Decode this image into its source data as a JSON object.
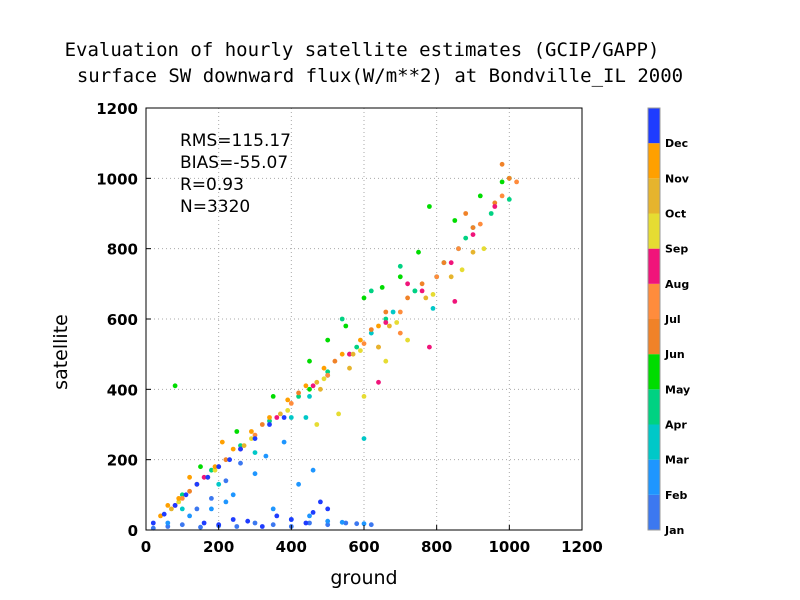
{
  "chart_data": {
    "type": "scatter",
    "title": "Evaluation of hourly satellite estimates (GCIP/GAPP)",
    "subtitle": "surface SW downward flux(W/m**2) at Bondville_IL 2000",
    "xlabel": "ground",
    "ylabel": "satellite",
    "xlim": [
      0,
      1200
    ],
    "ylim": [
      0,
      1200
    ],
    "xticks": [
      "0",
      "200",
      "400",
      "600",
      "800",
      "1000",
      "1200"
    ],
    "yticks": [
      "0",
      "200",
      "400",
      "600",
      "800",
      "1000",
      "1200"
    ],
    "grid": true,
    "stats": [
      "RMS=115.17",
      "BIAS=-55.07",
      "R=0.93",
      "N=3320"
    ],
    "legend_position": "right colorbar",
    "colorbar": [
      {
        "label": "Jan",
        "color": "#3c78f0"
      },
      {
        "label": "Feb",
        "color": "#1e96ff"
      },
      {
        "label": "Mar",
        "color": "#00c8c8"
      },
      {
        "label": "Apr",
        "color": "#00d282"
      },
      {
        "label": "May",
        "color": "#00dc00"
      },
      {
        "label": "Jun",
        "color": "#f08228"
      },
      {
        "label": "Jul",
        "color": "#ff8c3c"
      },
      {
        "label": "Aug",
        "color": "#f0147a"
      },
      {
        "label": "Sep",
        "color": "#e6dc32"
      },
      {
        "label": "Oct",
        "color": "#e6b42d"
      },
      {
        "label": "Nov",
        "color": "#ffa000"
      },
      {
        "label": "Dec",
        "color": "#1e3cff"
      }
    ],
    "series": [
      {
        "month": "Jan",
        "points": [
          [
            20,
            5
          ],
          [
            60,
            10
          ],
          [
            100,
            15
          ],
          [
            150,
            8
          ],
          [
            200,
            12
          ],
          [
            250,
            10
          ],
          [
            300,
            20
          ],
          [
            350,
            15
          ],
          [
            400,
            10
          ],
          [
            450,
            20
          ],
          [
            500,
            15
          ],
          [
            550,
            20
          ],
          [
            580,
            18
          ],
          [
            620,
            15
          ],
          [
            220,
            140
          ],
          [
            260,
            190
          ],
          [
            180,
            90
          ],
          [
            140,
            60
          ]
        ]
      },
      {
        "month": "Feb",
        "points": [
          [
            60,
            20
          ],
          [
            120,
            40
          ],
          [
            180,
            60
          ],
          [
            240,
            100
          ],
          [
            300,
            160
          ],
          [
            330,
            210
          ],
          [
            380,
            250
          ],
          [
            400,
            30
          ],
          [
            450,
            40
          ],
          [
            500,
            25
          ],
          [
            540,
            22
          ],
          [
            600,
            18
          ],
          [
            350,
            60
          ],
          [
            420,
            130
          ],
          [
            460,
            170
          ],
          [
            220,
            80
          ]
        ]
      },
      {
        "month": "Mar",
        "points": [
          [
            100,
            60
          ],
          [
            200,
            130
          ],
          [
            300,
            220
          ],
          [
            400,
            320
          ],
          [
            450,
            380
          ],
          [
            500,
            440
          ],
          [
            560,
            500
          ],
          [
            620,
            560
          ],
          [
            680,
            620
          ],
          [
            740,
            680
          ],
          [
            790,
            630
          ],
          [
            800,
            720
          ],
          [
            860,
            800
          ],
          [
            900,
            860
          ],
          [
            440,
            320
          ],
          [
            600,
            260
          ]
        ]
      },
      {
        "month": "Apr",
        "points": [
          [
            100,
            100
          ],
          [
            180,
            170
          ],
          [
            260,
            240
          ],
          [
            340,
            310
          ],
          [
            420,
            380
          ],
          [
            500,
            450
          ],
          [
            580,
            520
          ],
          [
            660,
            600
          ],
          [
            740,
            680
          ],
          [
            820,
            760
          ],
          [
            880,
            830
          ],
          [
            950,
            900
          ],
          [
            1000,
            940
          ],
          [
            700,
            750
          ],
          [
            620,
            680
          ],
          [
            540,
            600
          ]
        ]
      },
      {
        "month": "May",
        "points": [
          [
            150,
            180
          ],
          [
            250,
            280
          ],
          [
            350,
            380
          ],
          [
            450,
            480
          ],
          [
            550,
            580
          ],
          [
            650,
            690
          ],
          [
            750,
            790
          ],
          [
            850,
            880
          ],
          [
            920,
            950
          ],
          [
            980,
            990
          ],
          [
            1000,
            1000
          ],
          [
            780,
            920
          ],
          [
            700,
            720
          ],
          [
            600,
            660
          ],
          [
            500,
            540
          ],
          [
            80,
            410
          ],
          [
            450,
            400
          ]
        ]
      },
      {
        "month": "Jun",
        "points": [
          [
            120,
            110
          ],
          [
            220,
            200
          ],
          [
            320,
            300
          ],
          [
            420,
            390
          ],
          [
            520,
            480
          ],
          [
            620,
            570
          ],
          [
            720,
            660
          ],
          [
            820,
            760
          ],
          [
            900,
            860
          ],
          [
            960,
            930
          ],
          [
            1000,
            1000
          ],
          [
            980,
            1040
          ],
          [
            880,
            900
          ],
          [
            760,
            700
          ],
          [
            660,
            620
          ]
        ]
      },
      {
        "month": "Jul",
        "points": [
          [
            100,
            90
          ],
          [
            200,
            180
          ],
          [
            300,
            270
          ],
          [
            400,
            360
          ],
          [
            500,
            440
          ],
          [
            600,
            530
          ],
          [
            700,
            620
          ],
          [
            800,
            720
          ],
          [
            860,
            800
          ],
          [
            920,
            870
          ],
          [
            980,
            950
          ],
          [
            1020,
            990
          ],
          [
            700,
            560
          ],
          [
            640,
            520
          ]
        ]
      },
      {
        "month": "Aug",
        "points": [
          [
            80,
            70
          ],
          [
            160,
            150
          ],
          [
            260,
            230
          ],
          [
            360,
            320
          ],
          [
            460,
            410
          ],
          [
            560,
            500
          ],
          [
            660,
            590
          ],
          [
            760,
            680
          ],
          [
            840,
            760
          ],
          [
            900,
            840
          ],
          [
            960,
            920
          ],
          [
            640,
            420
          ],
          [
            780,
            520
          ],
          [
            720,
            700
          ],
          [
            850,
            650
          ]
        ]
      },
      {
        "month": "Sep",
        "points": [
          [
            90,
            80
          ],
          [
            190,
            170
          ],
          [
            290,
            260
          ],
          [
            390,
            340
          ],
          [
            490,
            430
          ],
          [
            590,
            510
          ],
          [
            690,
            590
          ],
          [
            790,
            670
          ],
          [
            870,
            740
          ],
          [
            930,
            800
          ],
          [
            720,
            540
          ],
          [
            660,
            480
          ],
          [
            600,
            380
          ],
          [
            530,
            330
          ],
          [
            470,
            300
          ]
        ]
      },
      {
        "month": "Oct",
        "points": [
          [
            70,
            60
          ],
          [
            170,
            150
          ],
          [
            270,
            240
          ],
          [
            370,
            330
          ],
          [
            470,
            420
          ],
          [
            570,
            500
          ],
          [
            670,
            580
          ],
          [
            770,
            660
          ],
          [
            840,
            720
          ],
          [
            900,
            790
          ],
          [
            640,
            520
          ],
          [
            560,
            460
          ],
          [
            480,
            400
          ]
        ]
      },
      {
        "month": "Nov",
        "points": [
          [
            40,
            40
          ],
          [
            90,
            90
          ],
          [
            140,
            130
          ],
          [
            190,
            180
          ],
          [
            240,
            230
          ],
          [
            290,
            280
          ],
          [
            340,
            320
          ],
          [
            390,
            370
          ],
          [
            440,
            410
          ],
          [
            490,
            460
          ],
          [
            540,
            500
          ],
          [
            590,
            540
          ],
          [
            640,
            580
          ],
          [
            120,
            150
          ],
          [
            60,
            70
          ],
          [
            210,
            250
          ]
        ]
      },
      {
        "month": "Dec",
        "points": [
          [
            20,
            20
          ],
          [
            50,
            45
          ],
          [
            80,
            70
          ],
          [
            110,
            100
          ],
          [
            140,
            130
          ],
          [
            170,
            150
          ],
          [
            200,
            180
          ],
          [
            230,
            200
          ],
          [
            260,
            230
          ],
          [
            300,
            260
          ],
          [
            340,
            300
          ],
          [
            380,
            320
          ],
          [
            160,
            20
          ],
          [
            200,
            15
          ],
          [
            240,
            30
          ],
          [
            280,
            25
          ],
          [
            320,
            10
          ],
          [
            360,
            40
          ],
          [
            400,
            30
          ],
          [
            440,
            20
          ],
          [
            460,
            50
          ],
          [
            480,
            80
          ],
          [
            500,
            60
          ]
        ]
      }
    ]
  }
}
